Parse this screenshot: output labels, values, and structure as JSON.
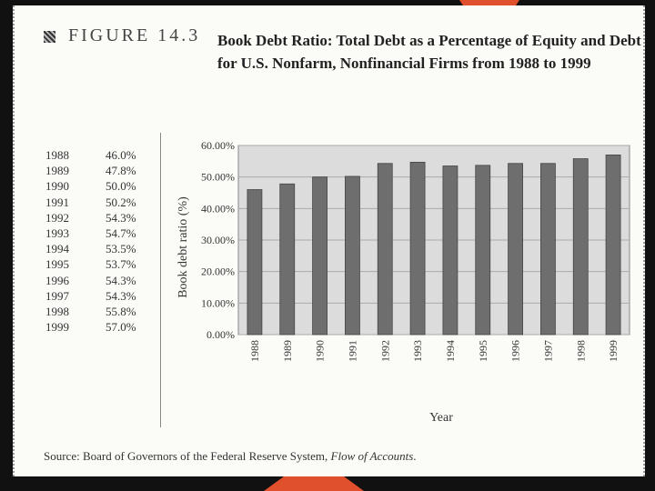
{
  "figure": {
    "label": "FIGURE",
    "number": "14.3",
    "title": "Book Debt Ratio: Total Debt as a Percentage of Equity and Debt for U.S. Nonfarm, Nonfinancial Firms from 1988 to 1999"
  },
  "table": {
    "rows": [
      {
        "year": "1988",
        "value": "46.0%"
      },
      {
        "year": "1989",
        "value": "47.8%"
      },
      {
        "year": "1990",
        "value": "50.0%"
      },
      {
        "year": "1991",
        "value": "50.2%"
      },
      {
        "year": "1992",
        "value": "54.3%"
      },
      {
        "year": "1993",
        "value": "54.7%"
      },
      {
        "year": "1994",
        "value": "53.5%"
      },
      {
        "year": "1995",
        "value": "53.7%"
      },
      {
        "year": "1996",
        "value": "54.3%"
      },
      {
        "year": "1997",
        "value": "54.3%"
      },
      {
        "year": "1998",
        "value": "55.8%"
      },
      {
        "year": "1999",
        "value": "57.0%"
      }
    ]
  },
  "chart_data": {
    "type": "bar",
    "title": "",
    "xlabel": "Year",
    "ylabel": "Book debt ratio (%)",
    "categories": [
      "1988",
      "1989",
      "1990",
      "1991",
      "1992",
      "1993",
      "1994",
      "1995",
      "1996",
      "1997",
      "1998",
      "1999"
    ],
    "values": [
      46.0,
      47.8,
      50.0,
      50.2,
      54.3,
      54.7,
      53.5,
      53.7,
      54.3,
      54.3,
      55.8,
      57.0
    ],
    "ylim": [
      0,
      60
    ],
    "yticks": [
      0,
      10,
      20,
      30,
      40,
      50,
      60
    ],
    "ytick_labels": [
      "0.00%",
      "10.00%",
      "20.00%",
      "30.00%",
      "40.00%",
      "50.00%",
      "60.00%"
    ],
    "grid": true,
    "bar_color": "#6e6e6e",
    "plot_bg": "#dcdcdc"
  },
  "source": {
    "prefix": "Source: Board of Governors of the Federal Reserve System, ",
    "title": "Flow of Accounts",
    "suffix": "."
  }
}
